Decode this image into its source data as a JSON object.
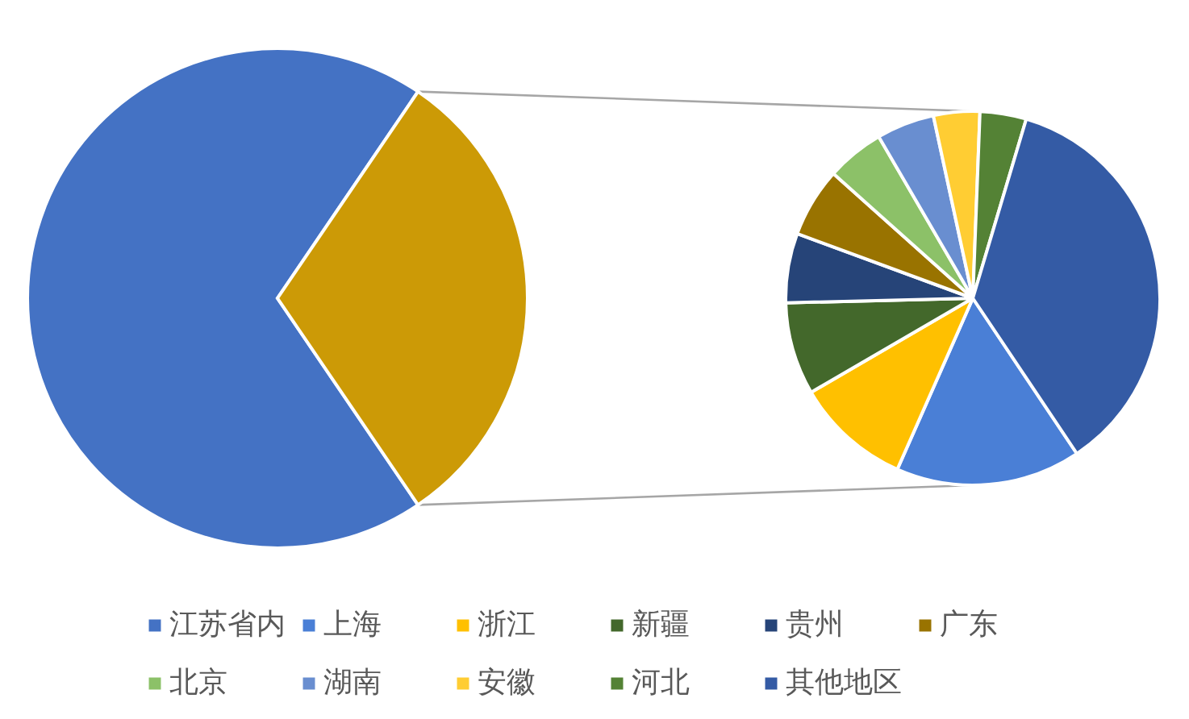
{
  "chart_data": [
    {
      "type": "pie",
      "categories": [
        "江苏省内",
        null
      ],
      "values": [
        69,
        31
      ],
      "colors": [
        "#4472c4",
        "#cc9a06"
      ],
      "legend": "bottom"
    },
    {
      "type": "pie",
      "categories": [
        "上海",
        "浙江",
        "新疆",
        "贵州",
        "广东",
        "北京",
        "湖南",
        "安徽",
        "河北",
        "其他地区"
      ],
      "values": [
        16,
        10,
        8,
        6,
        6,
        5,
        5,
        4,
        4,
        36
      ],
      "colors": [
        "#4a7fd6",
        "#ffc000",
        "#43682b",
        "#264478",
        "#997300",
        "#8cc168",
        "#698ed0",
        "#ffcd33",
        "#548235",
        "#345ba5"
      ],
      "legend": "bottom"
    }
  ]
}
